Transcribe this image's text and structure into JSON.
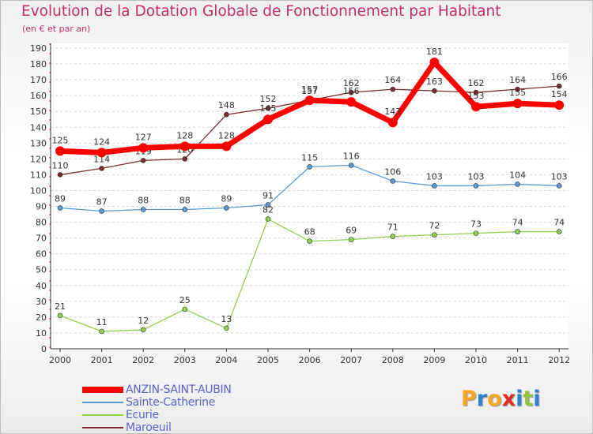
{
  "chart_data": {
    "type": "line",
    "title": "Evolution de la Dotation Globale de Fonctionnement par Habitant",
    "subtitle": "(en € et par an)",
    "x": [
      "2000",
      "2001",
      "2002",
      "2003",
      "2004",
      "2005",
      "2006",
      "2007",
      "2008",
      "2009",
      "2010",
      "2011",
      "2012"
    ],
    "yticks": [
      "0",
      "10",
      "20",
      "30",
      "40",
      "50",
      "60",
      "70",
      "80",
      "90",
      "100",
      "110",
      "120",
      "130",
      "140",
      "150",
      "160",
      "170",
      "180",
      "190"
    ],
    "ylim": [
      0,
      190
    ],
    "grid": "horizontal dashed",
    "legend_position": "bottom-left",
    "series": [
      {
        "name": "ANZIN-SAINT-AUBIN",
        "color": "#ff0000",
        "values": [
          125,
          124,
          127,
          128,
          128,
          145,
          157,
          156,
          143,
          181,
          153,
          155,
          154
        ],
        "labels": [
          "125",
          "124",
          "127",
          "128",
          "128",
          "145",
          "157",
          "156",
          "143",
          "181",
          "153",
          "155",
          "154"
        ],
        "emphasis": "thick"
      },
      {
        "name": "Sainte-Catherine",
        "color": "#5b9bd5",
        "values": [
          89,
          87,
          88,
          88,
          89,
          91,
          115,
          116,
          106,
          103,
          103,
          104,
          103
        ],
        "labels": [
          "89",
          "87",
          "88",
          "88",
          "89",
          "91",
          "115",
          "116",
          "106",
          "103",
          "103",
          "104",
          "103"
        ]
      },
      {
        "name": "Ecurie",
        "color": "#92d050",
        "values": [
          21,
          11,
          12,
          25,
          13,
          82,
          68,
          69,
          71,
          72,
          73,
          74,
          74
        ],
        "labels": [
          "21",
          "11",
          "12",
          "25",
          "13",
          "82",
          "68",
          "69",
          "71",
          "72",
          "73",
          "74",
          "74"
        ]
      },
      {
        "name": "Maroeuil",
        "color": "#7b2c2c",
        "values": [
          110,
          114,
          119,
          120,
          148,
          152,
          157,
          162,
          164,
          163,
          162,
          164,
          166
        ],
        "labels": [
          "110",
          "114",
          "119",
          "120",
          "148",
          "152",
          "157",
          "162",
          "164",
          "163",
          "162",
          "164",
          "166"
        ]
      }
    ]
  },
  "logo": {
    "letters": [
      "P",
      "r",
      "o",
      "x",
      "i",
      "t",
      "i"
    ],
    "colors": [
      "#f5a623",
      "#2f7fd2",
      "#f5a623",
      "#e02b20",
      "#2f7fd2",
      "#8fc63d",
      "#2f7fd2"
    ]
  }
}
